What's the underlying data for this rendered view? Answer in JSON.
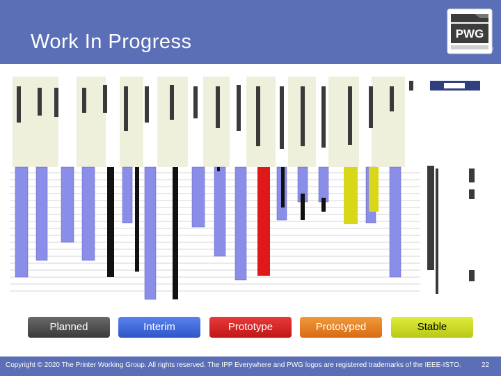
{
  "slide": {
    "title": "Work In Progress",
    "registered_mark": "®",
    "logo_text": "PWG"
  },
  "legend": [
    {
      "label": "Planned",
      "color": "#4a4a4a",
      "text_color": "#ffffff"
    },
    {
      "label": "Interim",
      "color": "#3d63d8",
      "text_color": "#ffffff"
    },
    {
      "label": "Prototype",
      "color": "#d61f1f",
      "text_color": "#ffffff"
    },
    {
      "label": "Prototyped",
      "color": "#e37a1e",
      "text_color": "#ffffff"
    },
    {
      "label": "Stable",
      "color": "#c8d81e",
      "text_color": "#000000"
    }
  ],
  "footer": {
    "copyright": "Copyright © 2020 The Printer Working Group. All rights reserved. The IPP Everywhere and PWG logos are registered trademarks of the IEEE-ISTO.",
    "page_number": "22"
  },
  "colors": {
    "header_blue": "#5a6fb6",
    "bar_blue": "#8a8ee8",
    "bar_black": "#111111",
    "bar_red": "#e01818",
    "bar_yellow": "#d8d818",
    "column_tint": "#ecefd8"
  }
}
